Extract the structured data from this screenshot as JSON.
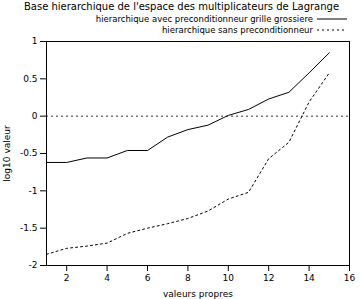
{
  "chart_data": {
    "type": "line",
    "title": "Base hierarchique de l'espace des multiplicateurs de Lagrange",
    "x_label": "valeurs propres",
    "y_label": "log10 valeur",
    "x": [
      1,
      2,
      3,
      4,
      5,
      6,
      7,
      8,
      9,
      10,
      11,
      12,
      13,
      14,
      15
    ],
    "series": [
      {
        "name": "hierarchique avec preconditionneur grille grossiere",
        "color": "#000000",
        "line_style": "solid",
        "values": [
          -0.62,
          -0.62,
          -0.56,
          -0.56,
          -0.46,
          -0.46,
          -0.28,
          -0.18,
          -0.12,
          0.01,
          0.09,
          0.23,
          0.32,
          0.58,
          0.85
        ]
      },
      {
        "name": "hierarchique sans preconditionneur",
        "color": "#000000",
        "line_style": "dotted",
        "values": [
          -1.85,
          -1.77,
          -1.74,
          -1.7,
          -1.57,
          -1.5,
          -1.44,
          -1.37,
          -1.27,
          -1.11,
          -1.02,
          -0.57,
          -0.35,
          0.19,
          0.58
        ]
      }
    ],
    "hlines": [
      0
    ],
    "xlim": [
      1,
      16
    ],
    "xticks": [
      2,
      4,
      6,
      8,
      10,
      12,
      14,
      16
    ],
    "ylim": [
      -2,
      1
    ],
    "yticks": [
      -2,
      -1.5,
      -1,
      -0.5,
      0,
      0.5,
      1
    ],
    "legend": "upper right",
    "grid": false
  }
}
